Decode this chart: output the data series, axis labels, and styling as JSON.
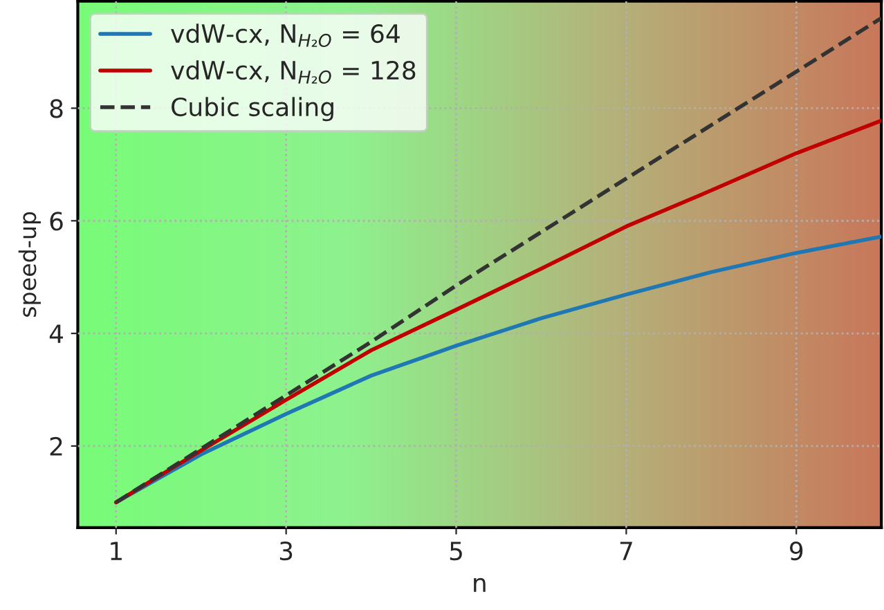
{
  "chart_data": {
    "type": "line",
    "xlabel": "n",
    "ylabel": "speed-up",
    "x": [
      1,
      2,
      3,
      4,
      5,
      6,
      7,
      8,
      9,
      10
    ],
    "series": [
      {
        "name": "vdW-cx, N$_{H₂O}$ = 64",
        "color": "#1f77b4",
        "values": [
          1,
          1.85,
          2.57,
          3.25,
          3.78,
          4.27,
          4.69,
          5.09,
          5.43,
          5.72
        ]
      },
      {
        "name": "vdW-cx, N$_{H₂O}$ = 128",
        "color": "#c00000",
        "values": [
          1,
          1.92,
          2.82,
          3.7,
          4.42,
          5.15,
          5.9,
          6.54,
          7.2,
          7.78
        ]
      },
      {
        "name": "Cubic scaling",
        "color": "#333333",
        "line_style": "dashed",
        "values": [
          1,
          1.95,
          2.9,
          3.85,
          4.85,
          5.8,
          6.75,
          7.7,
          8.65,
          9.6
        ]
      }
    ],
    "xlim": [
      0.55,
      10
    ],
    "ylim": [
      0.55,
      9.9
    ],
    "xticks": [
      1,
      3,
      5,
      7,
      9
    ],
    "yticks": [
      2,
      4,
      6,
      8
    ],
    "grid": true,
    "legend": "top left"
  }
}
